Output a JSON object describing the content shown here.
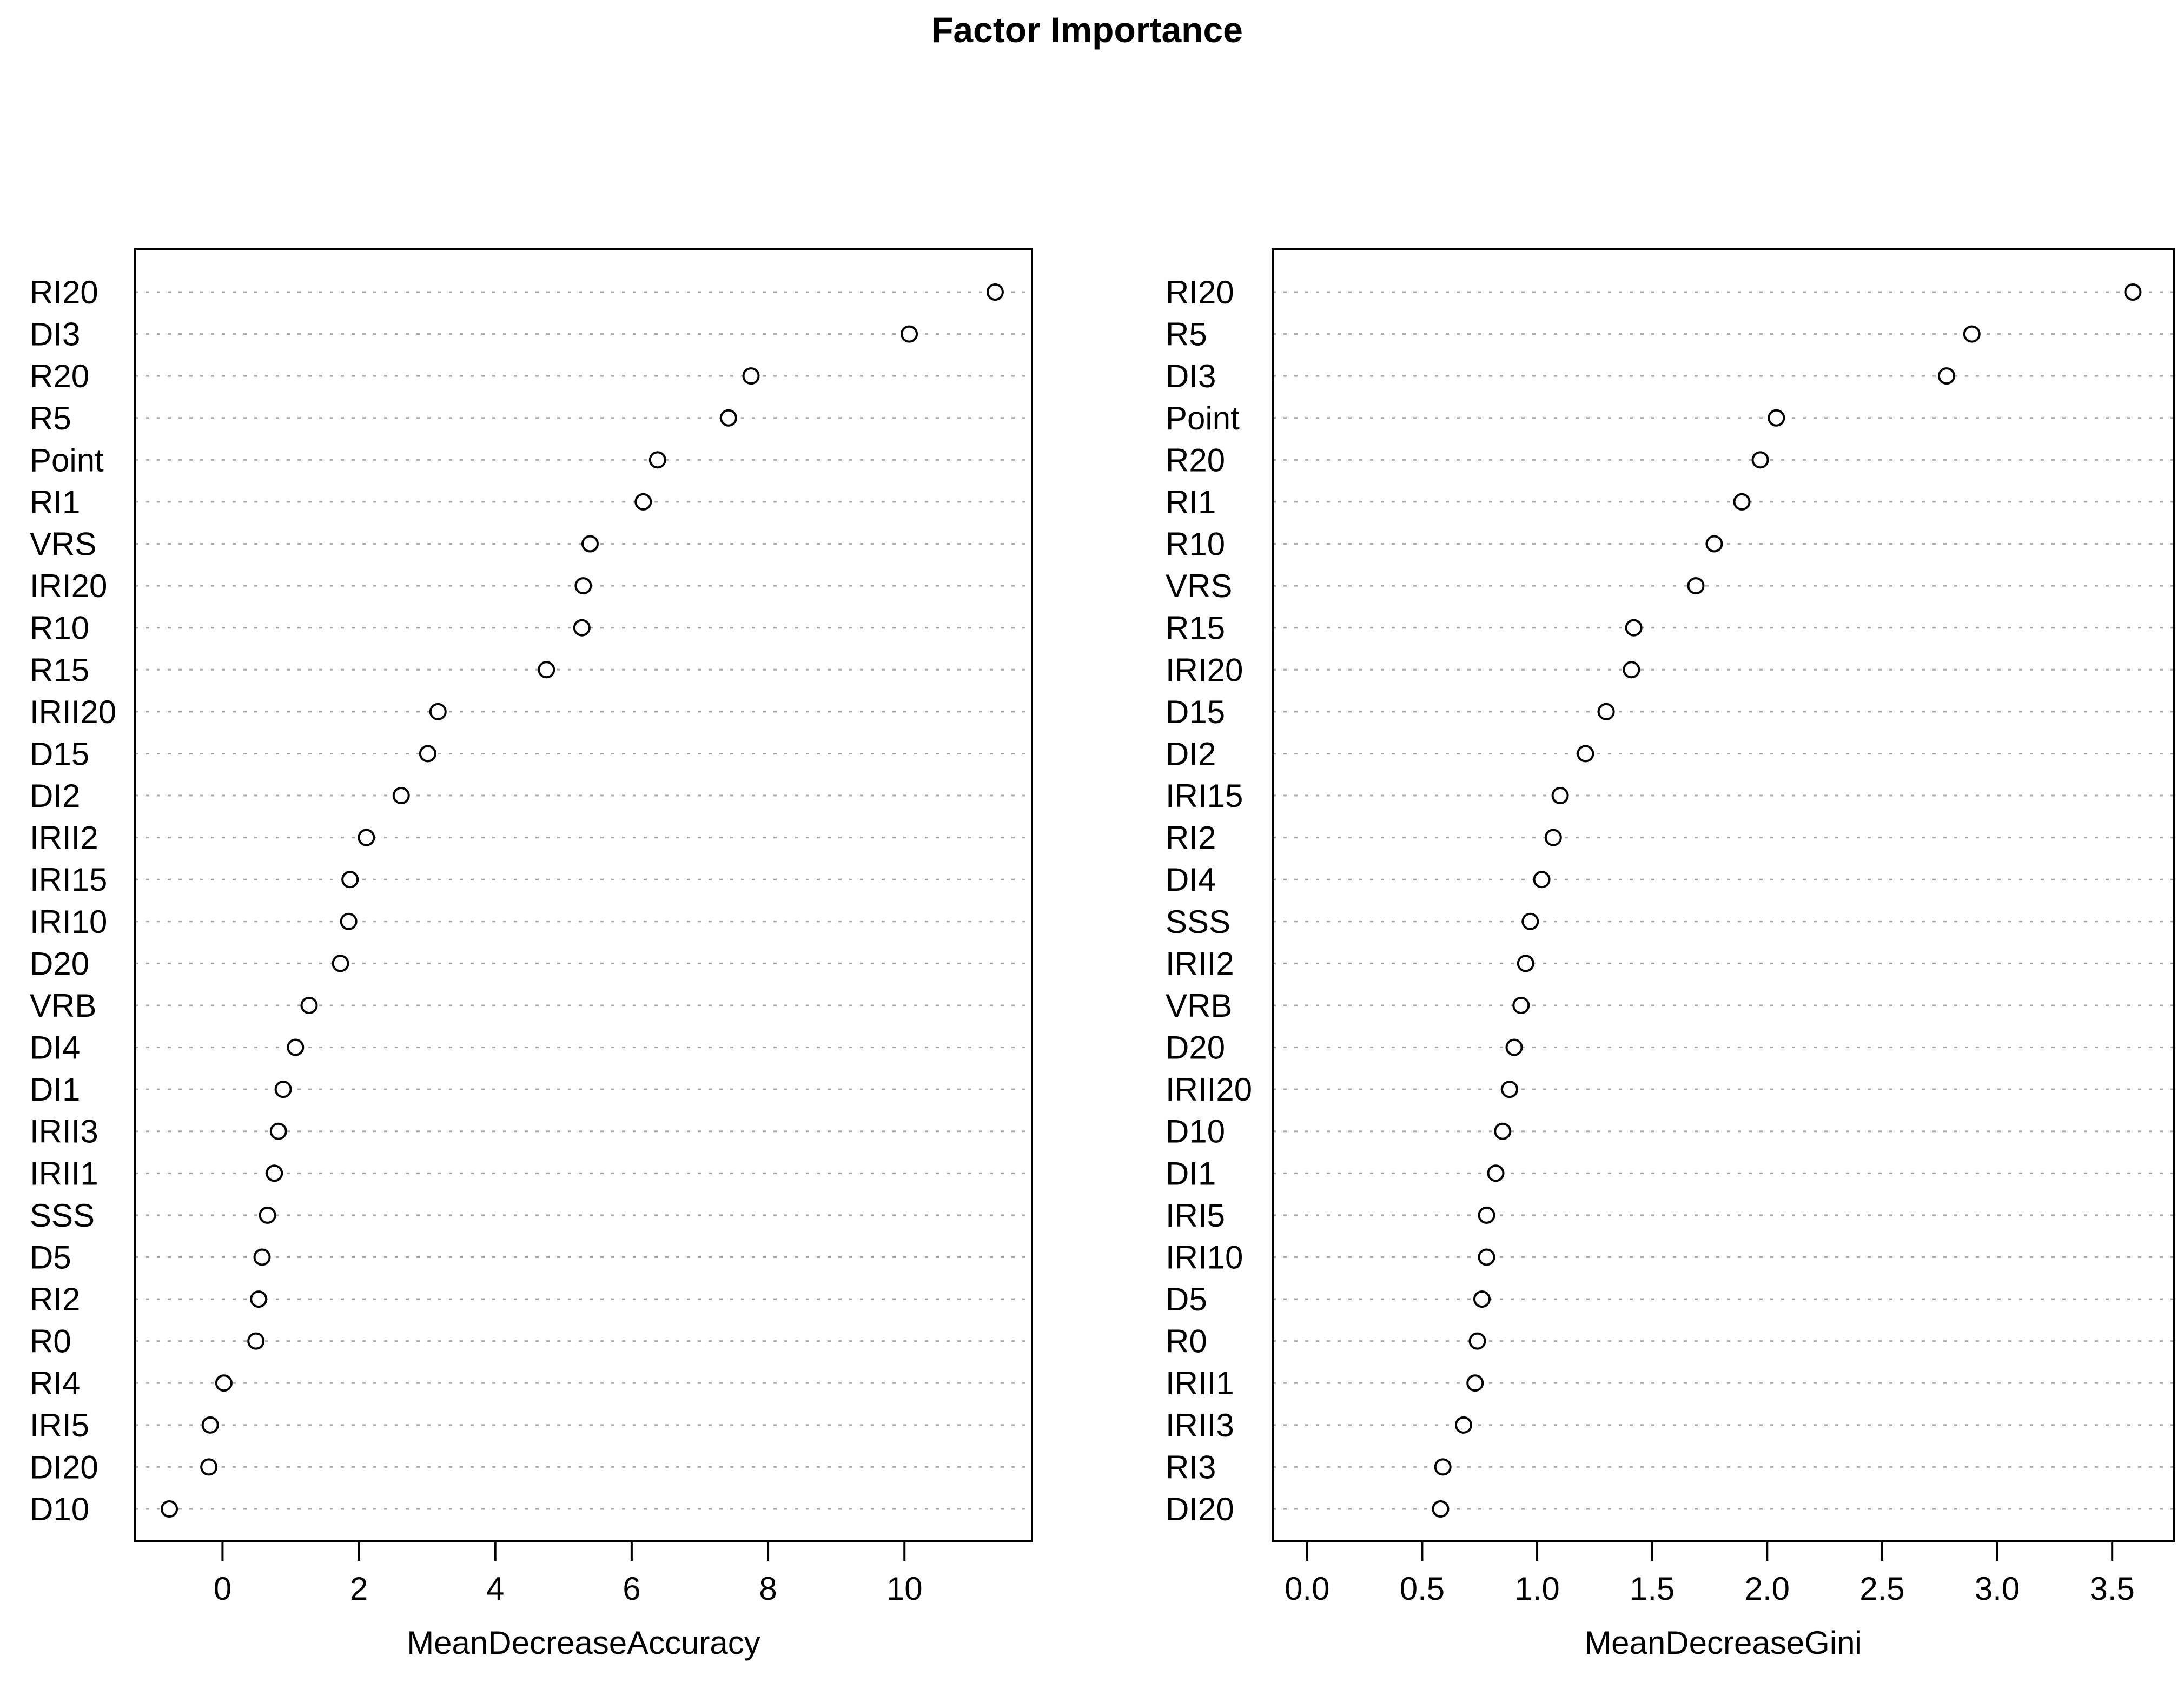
{
  "title": "Factor Importance",
  "colors": {
    "background": "#ffffff",
    "box_stroke": "#000000",
    "grid_stroke": "#a8a8a8",
    "dot_stroke": "#000000",
    "dot_fill": "#ffffff",
    "text": "#000000"
  },
  "point_style": "open-circle",
  "chart_data": [
    {
      "type": "scatter",
      "panel": "left",
      "xlabel": "MeanDecreaseAccuracy",
      "xlim": [
        -1.28,
        11.87
      ],
      "xticks": [
        0,
        2,
        4,
        6,
        8,
        10
      ],
      "xtick_labels": [
        "0",
        "2",
        "4",
        "6",
        "8",
        "10"
      ],
      "grid": true,
      "legend": "none",
      "categories": [
        "RI20",
        "DI3",
        "R20",
        "R5",
        "Point",
        "RI1",
        "VRS",
        "IRI20",
        "R10",
        "R15",
        "IRII20",
        "D15",
        "DI2",
        "IRII2",
        "IRI15",
        "IRI10",
        "D20",
        "VRB",
        "DI4",
        "DI1",
        "IRII3",
        "IRII1",
        "SSS",
        "D5",
        "RI2",
        "R0",
        "RI4",
        "IRI5",
        "DI20",
        "D10"
      ],
      "values": [
        11.33,
        10.07,
        7.75,
        7.42,
        6.38,
        6.17,
        5.39,
        5.29,
        5.27,
        4.75,
        3.16,
        3.01,
        2.62,
        2.11,
        1.87,
        1.85,
        1.73,
        1.27,
        1.07,
        0.89,
        0.82,
        0.76,
        0.66,
        0.58,
        0.53,
        0.49,
        0.02,
        -0.18,
        -0.2,
        -0.78
      ]
    },
    {
      "type": "scatter",
      "panel": "right",
      "xlabel": "MeanDecreaseGini",
      "xlim": [
        -0.15,
        3.77
      ],
      "xticks": [
        0,
        0.5,
        1,
        1.5,
        2,
        2.5,
        3,
        3.5
      ],
      "xtick_labels": [
        "0.0",
        "0.5",
        "1.0",
        "1.5",
        "2.0",
        "2.5",
        "3.0",
        "3.5"
      ],
      "grid": true,
      "legend": "none",
      "categories": [
        "RI20",
        "R5",
        "DI3",
        "Point",
        "R20",
        "RI1",
        "R10",
        "VRS",
        "R15",
        "IRI20",
        "D15",
        "DI2",
        "IRI15",
        "RI2",
        "DI4",
        "SSS",
        "IRII2",
        "VRB",
        "D20",
        "IRII20",
        "D10",
        "DI1",
        "IRI5",
        "IRI10",
        "D5",
        "R0",
        "IRII1",
        "IRII3",
        "RI3",
        "DI20"
      ],
      "values": [
        3.59,
        2.89,
        2.78,
        2.04,
        1.97,
        1.89,
        1.77,
        1.69,
        1.42,
        1.41,
        1.3,
        1.21,
        1.1,
        1.07,
        1.02,
        0.97,
        0.95,
        0.93,
        0.9,
        0.88,
        0.85,
        0.82,
        0.78,
        0.78,
        0.76,
        0.74,
        0.73,
        0.68,
        0.59,
        0.58
      ]
    }
  ]
}
